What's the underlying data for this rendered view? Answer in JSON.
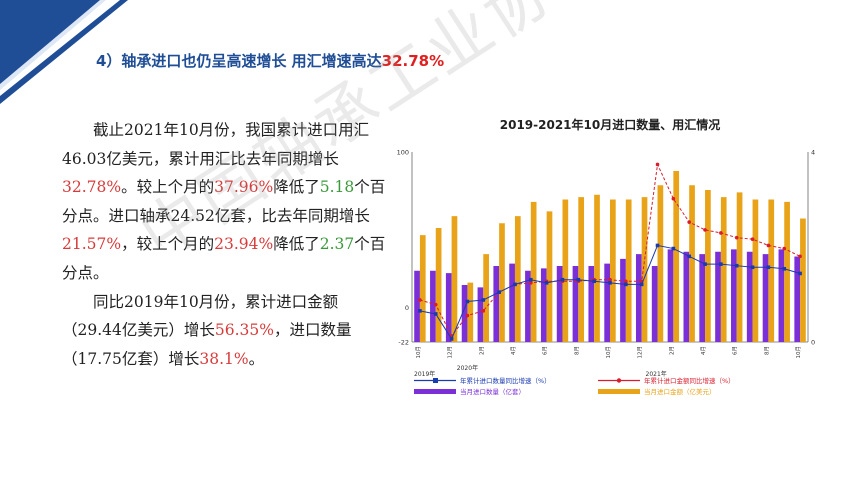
{
  "slide": {
    "title_prefix": "4）轴承进口也仍呈高速增长  用汇增速高达",
    "title_highlight": "32.78%",
    "accent_color": "#1f4e96",
    "highlight_color": "#e02020"
  },
  "paragraph1": {
    "t1": "截止2021年10月份，我国累计进口用汇46.03亿美元，累计用汇比去年同期增长",
    "v1": "32.78%",
    "t2": "。较上个月的",
    "v2": "37.96%",
    "t3": "降低了",
    "v3": "5.18",
    "t4": "个百分点。进口轴承24.52亿套，比去年同期增长",
    "v4": "21.57%",
    "t5": "，较上个月的",
    "v5": "23.94%",
    "t6": "降低了",
    "v6": "2.37",
    "t7": "个百分点。"
  },
  "paragraph2": {
    "t1": "同比2019年10月份，累计进口金额（29.44亿美元）增长",
    "v1": "56.35%",
    "t2": "，进口数量（17.75亿套）增长",
    "v2": "38.1%",
    "t3": "。"
  },
  "watermark": "中国轴承工业协会 www.cbia.com.cn",
  "chart_data": {
    "type": "bar",
    "title": "2019-2021年10月进口数量、用汇情况",
    "categories": [
      "2019-10",
      "2019-11",
      "2019-12",
      "2020-01",
      "2020-02",
      "2020-03",
      "2020-04",
      "2020-05",
      "2020-06",
      "2020-07",
      "2020-08",
      "2020-09",
      "2020-10",
      "2020-11",
      "2020-12",
      "2021-01",
      "2021-02",
      "2021-03",
      "2021-04",
      "2021-05",
      "2021-06",
      "2021-07",
      "2021-08",
      "2021-09",
      "2021-10"
    ],
    "year_labels": [
      "2019年",
      "2020年",
      "2021年"
    ],
    "month_labels": [
      "10月",
      "12月",
      "2月",
      "4月",
      "6月",
      "8月",
      "10月",
      "12月",
      "2月",
      "4月",
      "6月",
      "8月",
      "10月"
    ],
    "left_axis": {
      "min": -22,
      "max": 100,
      "labels": [
        "100",
        "0",
        "-22"
      ]
    },
    "right_axis": {
      "min": 0,
      "max": 4,
      "labels": [
        "4",
        "0"
      ]
    },
    "series": [
      {
        "name": "年累计进口数量同比增速（%）",
        "type": "line",
        "axis": "left",
        "color": "#1a3ab0",
        "values": [
          -2,
          -4,
          -20,
          4,
          5,
          10,
          15,
          18,
          16,
          18,
          18,
          17,
          16,
          15,
          15,
          40,
          38,
          33,
          28,
          28,
          27,
          26,
          26,
          25,
          22
        ]
      },
      {
        "name": "年累计进口金额同比增速（%）",
        "type": "line",
        "axis": "left",
        "color": "#d81e2e",
        "values": [
          5,
          2,
          -18,
          -5,
          -2,
          10,
          15,
          16,
          17,
          17,
          17,
          18,
          18,
          17,
          17,
          92,
          70,
          55,
          50,
          48,
          45,
          44,
          40,
          38,
          33
        ]
      },
      {
        "name": "当月进口数量（亿套）",
        "type": "bar",
        "axis": "right",
        "color": "#7b2fd6",
        "values": [
          1.5,
          1.5,
          1.45,
          1.2,
          1.15,
          1.6,
          1.65,
          1.5,
          1.55,
          1.6,
          1.6,
          1.6,
          1.65,
          1.75,
          1.85,
          1.6,
          1.95,
          1.9,
          1.85,
          1.9,
          1.95,
          1.9,
          1.85,
          1.95,
          1.8
        ]
      },
      {
        "name": "当月进口金额（亿美元）",
        "type": "bar",
        "axis": "right",
        "color": "#e9a319",
        "values": [
          2.25,
          2.4,
          2.65,
          1.25,
          1.85,
          2.5,
          2.65,
          2.95,
          2.75,
          3.0,
          3.05,
          3.1,
          3.0,
          3.0,
          3.05,
          3.3,
          3.6,
          3.3,
          3.2,
          3.05,
          3.15,
          3.0,
          3.0,
          2.95,
          2.6
        ]
      }
    ],
    "legend_position": "bottom",
    "grid": false
  }
}
